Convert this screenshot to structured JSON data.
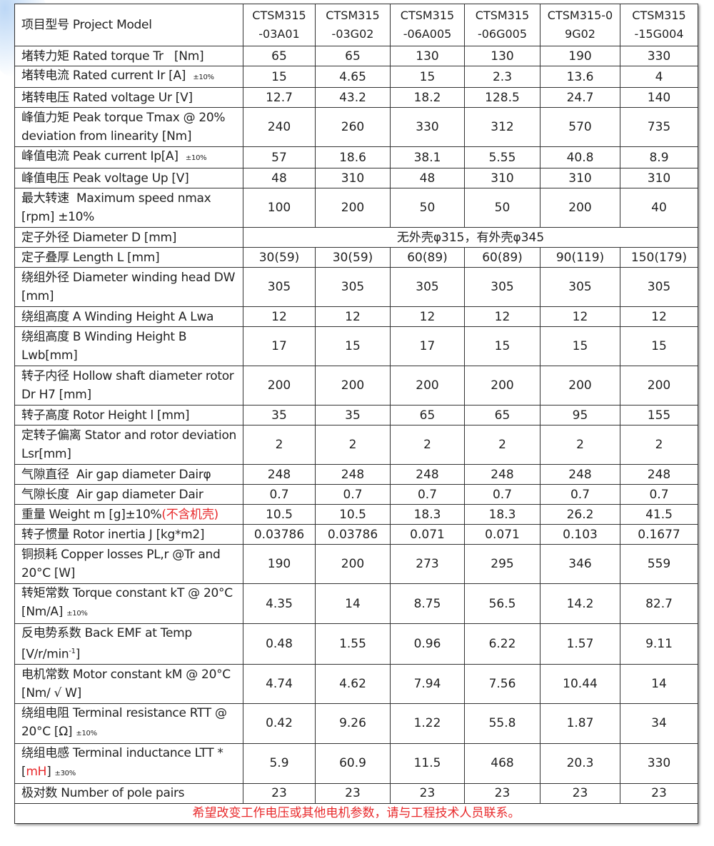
{
  "header": {
    "label": "项目型号 Project Model",
    "models": [
      "CTSM315\n-03A01",
      "CTSM315\n-03G02",
      "CTSM315\n-06A005",
      "CTSM315\n-06G005",
      "CTSM315-0\n9G02",
      "CTSM315\n-15G004"
    ]
  },
  "rows": [
    {
      "label": [
        {
          "t": "堵转力矩 Rated torque Tr   [Nm]"
        }
      ],
      "values": [
        "65",
        "65",
        "130",
        "130",
        "190",
        "330"
      ]
    },
    {
      "label": [
        {
          "t": "堵转电流 Rated current Ir [A]  "
        },
        {
          "t": "±10%",
          "c": "small"
        }
      ],
      "values": [
        "15",
        "4.65",
        "15",
        "2.3",
        "13.6",
        "4"
      ]
    },
    {
      "label": [
        {
          "t": "堵转电压 Rated voltage Ur [V]"
        }
      ],
      "values": [
        "12.7",
        "43.2",
        "18.2",
        "128.5",
        "24.7",
        "140"
      ]
    },
    {
      "label": [
        {
          "t": "峰值力矩 Peak torque Tmax @ 20% deviation from linearity [Nm]"
        }
      ],
      "values": [
        "240",
        "260",
        "330",
        "312",
        "570",
        "735"
      ],
      "tall": true
    },
    {
      "label": [
        {
          "t": "峰值电流 Peak current Ip[A]  "
        },
        {
          "t": "±10%",
          "c": "small"
        }
      ],
      "values": [
        "57",
        "18.6",
        "38.1",
        "5.55",
        "40.8",
        "8.9"
      ]
    },
    {
      "label": [
        {
          "t": "峰值电压 Peak voltage Up [V]"
        }
      ],
      "values": [
        "48",
        "310",
        "48",
        "310",
        "310",
        "310"
      ]
    },
    {
      "label": [
        {
          "t": "最大转速  Maximum speed nmax [rpm] ±10%"
        }
      ],
      "values": [
        "100",
        "200",
        "50",
        "50",
        "200",
        "40"
      ],
      "tall": true
    },
    {
      "label": [
        {
          "t": "定子外径 Diameter D [mm]"
        }
      ],
      "merged": "无外壳φ315，有外壳φ345"
    },
    {
      "label": [
        {
          "t": "定子叠厚 Length L [mm]"
        }
      ],
      "values": [
        "30(59)",
        "30(59)",
        "60(89)",
        "60(89)",
        "90(119)",
        "150(179)"
      ]
    },
    {
      "label": [
        {
          "t": "绕组外径 Diameter winding head DW [mm]"
        }
      ],
      "values": [
        "305",
        "305",
        "305",
        "305",
        "305",
        "305"
      ],
      "tall": true
    },
    {
      "label": [
        {
          "t": "绕组高度 A Winding Height A Lwa"
        }
      ],
      "values": [
        "12",
        "12",
        "12",
        "12",
        "12",
        "12"
      ]
    },
    {
      "label": [
        {
          "t": "绕组高度 B Winding Height B Lwb[mm]"
        }
      ],
      "values": [
        "17",
        "15",
        "17",
        "15",
        "15",
        "15"
      ],
      "tall": true
    },
    {
      "label": [
        {
          "t": "转子内径 Hollow shaft diameter rotor Dr H7 [mm]"
        }
      ],
      "values": [
        "200",
        "200",
        "200",
        "200",
        "200",
        "200"
      ],
      "tall": true
    },
    {
      "label": [
        {
          "t": "转子高度 Rotor Height l [mm]"
        }
      ],
      "values": [
        "35",
        "35",
        "65",
        "65",
        "95",
        "155"
      ]
    },
    {
      "label": [
        {
          "t": "定转子偏离 Stator and rotor deviation Lsr[mm]"
        }
      ],
      "values": [
        "2",
        "2",
        "2",
        "2",
        "2",
        "2"
      ],
      "tall": true
    },
    {
      "label": [
        {
          "t": "气隙直径  Air gap diameter Dairφ"
        }
      ],
      "values": [
        "248",
        "248",
        "248",
        "248",
        "248",
        "248"
      ]
    },
    {
      "label": [
        {
          "t": "气隙长度  Air gap diameter Dair"
        }
      ],
      "values": [
        "0.7",
        "0.7",
        "0.7",
        "0.7",
        "0.7",
        "0.7"
      ]
    },
    {
      "label": [
        {
          "t": "重量 Weight m [g]±10%"
        },
        {
          "t": "(不含机壳)",
          "c": "red"
        }
      ],
      "values": [
        "10.5",
        "10.5",
        "18.3",
        "18.3",
        "26.2",
        "41.5"
      ]
    },
    {
      "label": [
        {
          "t": "转子惯量 Rotor inertia J [kg*m2]"
        }
      ],
      "values": [
        "0.03786",
        "0.03786",
        "0.071",
        "0.071",
        "0.103",
        "0.1677"
      ]
    },
    {
      "label": [
        {
          "t": "铜损耗 Copper losses PL,r @Tr and 20°C [W]"
        }
      ],
      "values": [
        "190",
        "200",
        "273",
        "295",
        "346",
        "559"
      ],
      "tall": true
    },
    {
      "label": [
        {
          "t": "转矩常数 Torque constant kT @ 20°C [Nm/A] "
        },
        {
          "t": "±10%",
          "c": "small"
        }
      ],
      "values": [
        "4.35",
        "14",
        "8.75",
        "56.5",
        "14.2",
        "82.7"
      ],
      "tall": true
    },
    {
      "label": [
        {
          "t": "反电势系数 Back EMF at Temp [V/r/min"
        },
        {
          "t": "-1",
          "c": "sup"
        },
        {
          "t": "]"
        }
      ],
      "values": [
        "0.48",
        "1.55",
        "0.96",
        "6.22",
        "1.57",
        "9.11"
      ],
      "tall": true
    },
    {
      "label": [
        {
          "t": "电机常数 Motor constant kM @ 20°C [Nm/ √ W]"
        }
      ],
      "values": [
        "4.74",
        "4.62",
        "7.94",
        "7.56",
        "10.44",
        "14"
      ],
      "tall": true
    },
    {
      "label": [
        {
          "t": "绕组电阻 Terminal resistance RTT @ 20°C [Ω] "
        },
        {
          "t": "±10%",
          "c": "small"
        }
      ],
      "values": [
        "0.42",
        "9.26",
        "1.22",
        "55.8",
        "1.87",
        "34"
      ],
      "tall": true
    },
    {
      "label": [
        {
          "t": "绕组电感 Terminal inductance LTT * ["
        },
        {
          "t": "mH",
          "c": "red"
        },
        {
          "t": "] "
        },
        {
          "t": "±30%",
          "c": "small"
        }
      ],
      "values": [
        "5.9",
        "60.9",
        "11.5",
        "468",
        "20.3",
        "330"
      ],
      "tall": true
    },
    {
      "label": [
        {
          "t": "极对数 Number of pole pairs"
        }
      ],
      "values": [
        "23",
        "23",
        "23",
        "23",
        "23",
        "23"
      ]
    }
  ],
  "footer_note": "希望改变工作电压或其他电机参数，请与工程技术人员联系。",
  "colors": {
    "note_red": "#e8292b",
    "border": "#333333"
  }
}
